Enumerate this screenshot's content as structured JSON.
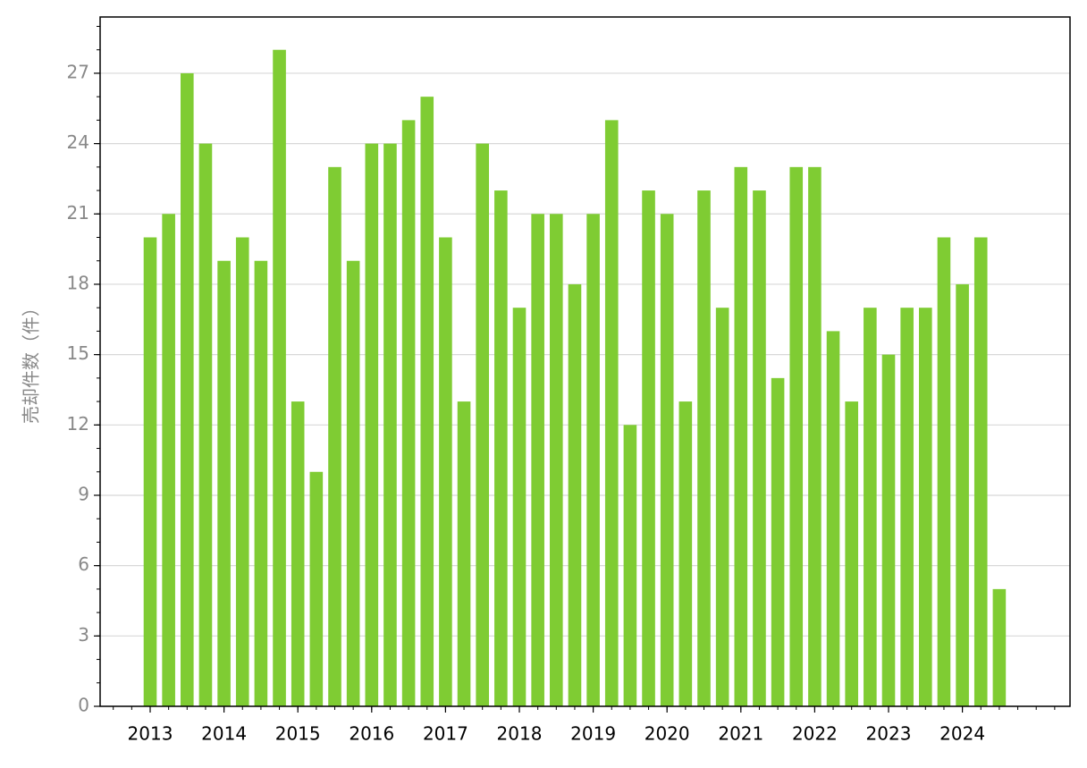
{
  "chart_data": {
    "type": "bar",
    "y_label": "売却件数（件）",
    "categories": [
      "2013",
      null,
      null,
      null,
      "2014",
      null,
      null,
      null,
      "2015",
      null,
      null,
      null,
      "2016",
      null,
      null,
      null,
      "2017",
      null,
      null,
      null,
      "2018",
      null,
      null,
      null,
      "2019",
      null,
      null,
      null,
      "2020",
      null,
      null,
      null,
      "2021",
      null,
      null,
      null,
      "2022",
      null,
      null,
      null,
      "2023",
      null,
      null,
      null,
      "2024",
      null,
      null
    ],
    "values": [
      20,
      21,
      27,
      24,
      19,
      20,
      19,
      28,
      13,
      10,
      23,
      19,
      24,
      24,
      25,
      26,
      20,
      13,
      24,
      22,
      17,
      21,
      21,
      18,
      21,
      25,
      12,
      22,
      21,
      13,
      22,
      17,
      23,
      22,
      14,
      23,
      23,
      16,
      13,
      17,
      15,
      17,
      17,
      20,
      18,
      20,
      5
    ],
    "color": "#7fcc33",
    "ylim": [
      0,
      29.4
    ],
    "yticks": [
      0,
      3,
      6,
      9,
      12,
      15,
      18,
      21,
      24,
      27
    ],
    "grid": true
  }
}
